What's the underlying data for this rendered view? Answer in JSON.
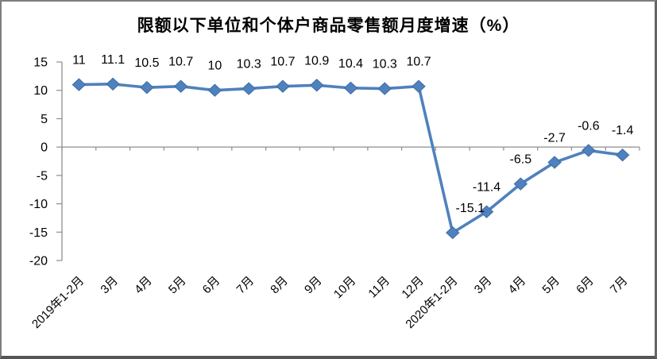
{
  "chart_data": {
    "type": "line",
    "title": "限额以下单位和个体户商品零售额月度增速（%）",
    "categories": [
      "2019年1-2月",
      "3月",
      "4月",
      "5月",
      "6月",
      "7月",
      "8月",
      "9月",
      "10月",
      "11月",
      "12月",
      "2020年1-2月",
      "3月",
      "4月",
      "5月",
      "6月",
      "7月"
    ],
    "values": [
      11,
      11.1,
      10.5,
      10.7,
      10,
      10.3,
      10.7,
      10.9,
      10.4,
      10.3,
      10.7,
      -15.1,
      -11.4,
      -6.5,
      -2.7,
      -0.6,
      -1.4
    ],
    "data_labels": [
      "11",
      "11.1",
      "10.5",
      "10.7",
      "10",
      "10.3",
      "10.7",
      "10.9",
      "10.4",
      "10.3",
      "10.7",
      "-15.1",
      "-11.4",
      "-6.5",
      "-2.7",
      "-0.6",
      "-1.4"
    ],
    "yticks": [
      15,
      10,
      5,
      0,
      -5,
      -10,
      -15,
      -20
    ],
    "ylim": [
      -20,
      15
    ],
    "xlabel": "",
    "ylabel": "",
    "legend": "none",
    "grid": false,
    "marker": "diamond",
    "colors": {
      "line": "#4F81BD",
      "marker_fill": "#4F81BD",
      "marker_edge": "#3E6CA5",
      "axis": "#8E8E8E",
      "text": "#000000"
    }
  }
}
